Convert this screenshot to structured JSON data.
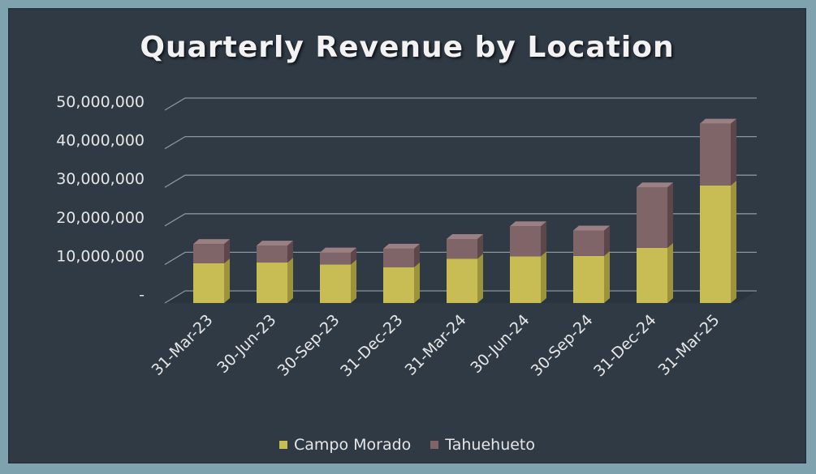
{
  "chart_data": {
    "type": "bar",
    "stacked": true,
    "three_d": true,
    "title": "Quarterly Revenue by Location",
    "categories": [
      "31-Mar-23",
      "30-Jun-23",
      "30-Sep-23",
      "31-Dec-23",
      "31-Mar-24",
      "30-Jun-24",
      "30-Sep-24",
      "31-Dec-24",
      "31-Mar-25"
    ],
    "series": [
      {
        "name": "Campo Morado",
        "values": [
          10300000,
          10500000,
          10000000,
          9300000,
          11500000,
          12100000,
          12200000,
          14300000,
          30500000
        ],
        "color": "#c8bd55",
        "side": "#9d933b",
        "top": "#ddd482"
      },
      {
        "name": "Tahuehueto",
        "values": [
          5000000,
          4400000,
          3100000,
          4800000,
          5100000,
          7800000,
          6600000,
          15700000,
          16000000
        ],
        "color": "#7f6468",
        "side": "#5d474b",
        "top": "#9a7f83"
      }
    ],
    "yticks": [
      "-",
      "10,000,000",
      "20,000,000",
      "30,000,000",
      "40,000,000",
      "50,000,000"
    ],
    "ylim": [
      0,
      50000000
    ],
    "grid": true,
    "legend": "bottom",
    "background": "#2f3a45",
    "frame": "#7ea3ae"
  }
}
